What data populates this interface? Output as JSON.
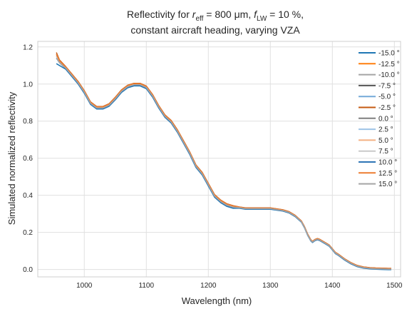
{
  "chart_data": {
    "type": "line",
    "title": {
      "line1_parts": [
        "Reflectivity for ",
        "r",
        "eff",
        " = 800 μm, ",
        "f",
        "LW",
        " = 10 %,"
      ],
      "line2": "constant aircraft heading, varying VZA"
    },
    "xlabel": "Wavelength (nm)",
    "ylabel": "Simulated normalized reflectivity",
    "xlim": [
      925,
      1510
    ],
    "ylim": [
      -0.04,
      1.23
    ],
    "xticks": [
      1000,
      1100,
      1200,
      1300,
      1400,
      1500
    ],
    "yticks": [
      0.0,
      0.2,
      0.4,
      0.6,
      0.8,
      1.0,
      1.2
    ],
    "xtick_labels": [
      "1000",
      "1100",
      "1200",
      "1300",
      "1400",
      "1500"
    ],
    "ytick_labels": [
      "0.0",
      "0.2",
      "0.4",
      "0.6",
      "0.8",
      "1.0",
      "1.2"
    ],
    "grid": true,
    "legend_position": "right",
    "base_curve": {
      "x": [
        955,
        960,
        970,
        980,
        990,
        1000,
        1010,
        1020,
        1030,
        1040,
        1050,
        1060,
        1070,
        1080,
        1090,
        1100,
        1110,
        1120,
        1130,
        1140,
        1150,
        1160,
        1170,
        1180,
        1190,
        1200,
        1210,
        1220,
        1230,
        1240,
        1250,
        1260,
        1270,
        1280,
        1290,
        1300,
        1310,
        1320,
        1330,
        1340,
        1350,
        1355,
        1360,
        1365,
        1368,
        1372,
        1376,
        1380,
        1385,
        1390,
        1395,
        1400,
        1405,
        1410,
        1420,
        1430,
        1440,
        1450,
        1460,
        1470,
        1480,
        1490,
        1495
      ],
      "y": [
        1.15,
        1.13,
        1.09,
        1.05,
        1.01,
        0.96,
        0.9,
        0.875,
        0.875,
        0.89,
        0.925,
        0.965,
        0.99,
        1.0,
        1.0,
        0.985,
        0.94,
        0.88,
        0.83,
        0.8,
        0.75,
        0.69,
        0.63,
        0.56,
        0.52,
        0.46,
        0.4,
        0.37,
        0.35,
        0.34,
        0.335,
        0.33,
        0.33,
        0.33,
        0.33,
        0.33,
        0.325,
        0.32,
        0.31,
        0.29,
        0.26,
        0.23,
        0.19,
        0.16,
        0.15,
        0.16,
        0.165,
        0.16,
        0.15,
        0.14,
        0.13,
        0.11,
        0.09,
        0.08,
        0.055,
        0.035,
        0.02,
        0.012,
        0.008,
        0.006,
        0.005,
        0.004,
        0.004
      ]
    },
    "series": [
      {
        "name": "-15.0 °",
        "color": "#1f77b4",
        "offset": -0.01,
        "start_y": 1.11
      },
      {
        "name": "-12.5 °",
        "color": "#ff7f0e",
        "offset": 0.003,
        "start_y": 1.15
      },
      {
        "name": "-10.0 °",
        "color": "#a5a5a5",
        "offset": 0.0,
        "start_y": 1.15
      },
      {
        "name": "-7.5 °",
        "color": "#555555",
        "offset": 0.002,
        "start_y": 1.16
      },
      {
        "name": "-5.0 °",
        "color": "#74a9d8",
        "offset": 0.0,
        "start_y": 1.16
      },
      {
        "name": "-2.5 °",
        "color": "#c55a11",
        "offset": 0.004,
        "start_y": 1.17
      },
      {
        "name": "0.0 °",
        "color": "#7f7f7f",
        "offset": 0.0,
        "start_y": 1.16
      },
      {
        "name": "2.5 °",
        "color": "#9dc3e6",
        "offset": -0.002,
        "start_y": 1.16
      },
      {
        "name": "5.0 °",
        "color": "#f4b183",
        "offset": 0.0,
        "start_y": 1.16
      },
      {
        "name": "7.5 °",
        "color": "#c9c9c9",
        "offset": -0.003,
        "start_y": 1.15
      },
      {
        "name": "10.0 °",
        "color": "#2e75b6",
        "offset": -0.006,
        "start_y": 1.14
      },
      {
        "name": "12.5 °",
        "color": "#ed7d31",
        "offset": 0.002,
        "start_y": 1.16
      },
      {
        "name": "15.0 °",
        "color": "#a5a5a5",
        "offset": -0.004,
        "start_y": 1.14
      }
    ]
  }
}
